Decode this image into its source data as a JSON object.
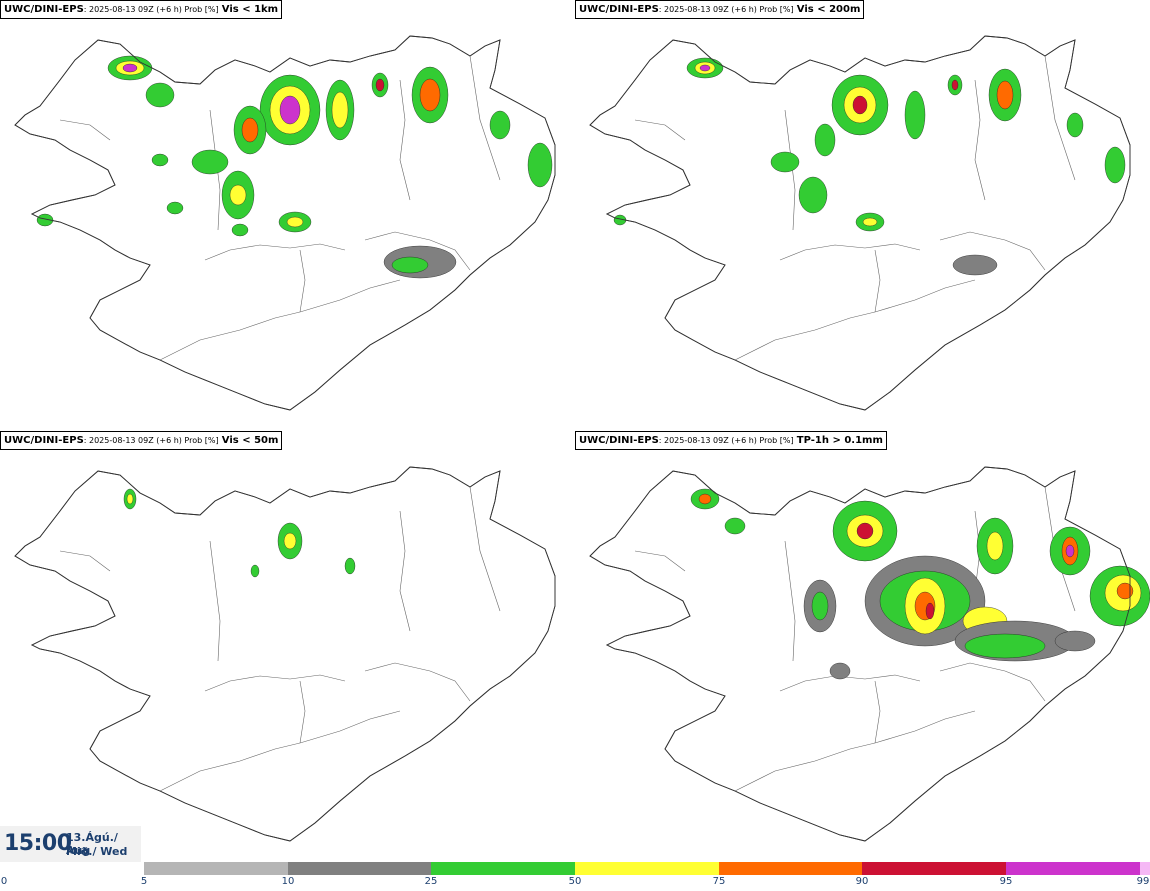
{
  "panels": [
    {
      "model": "UWC/DINI-EPS",
      "meta": ": 2025-08-13 09Z (+6 h) Prob [%]",
      "variable": "Vis < 1km"
    },
    {
      "model": "UWC/DINI-EPS",
      "meta": ": 2025-08-13 09Z (+6 h) Prob [%]",
      "variable": "Vis < 200m"
    },
    {
      "model": "UWC/DINI-EPS",
      "meta": ": 2025-08-13 09Z (+6 h) Prob [%]",
      "variable": "Vis < 50m"
    },
    {
      "model": "UWC/DINI-EPS",
      "meta": ": 2025-08-13 09Z (+6 h) Prob [%]",
      "variable": "TP-1h > 0.1mm"
    }
  ],
  "valid": {
    "time": "15:00",
    "date_line1": "13.Ágú./ Aug",
    "date_line2": "Mið./ Wed"
  },
  "colorbar": {
    "bins": [
      {
        "from": 0,
        "to": 5,
        "color": "#ffffff"
      },
      {
        "from": 5,
        "to": 10,
        "color": "#b5b5b5"
      },
      {
        "from": 10,
        "to": 25,
        "color": "#808080"
      },
      {
        "from": 25,
        "to": 50,
        "color": "#33cc33"
      },
      {
        "from": 50,
        "to": 75,
        "color": "#ffff33"
      },
      {
        "from": 75,
        "to": 90,
        "color": "#ff6a00"
      },
      {
        "from": 90,
        "to": 95,
        "color": "#cc1133"
      },
      {
        "from": 95,
        "to": 99,
        "color": "#cc33cc"
      },
      {
        "from": 99,
        "to": 100,
        "color": "#f5b8f5"
      }
    ],
    "tick_labels": [
      "0",
      "5",
      "10",
      "25",
      "50",
      "75",
      "90",
      "95",
      "99"
    ]
  }
}
